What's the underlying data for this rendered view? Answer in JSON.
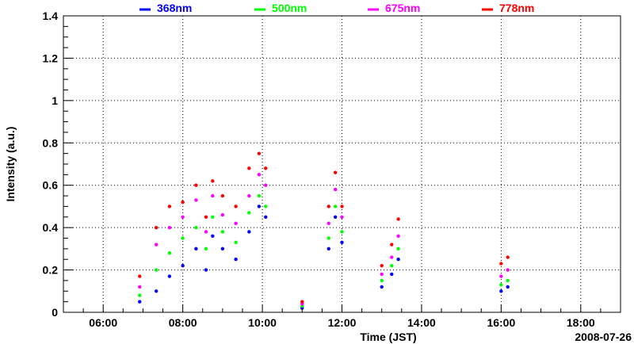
{
  "chart_data": {
    "type": "scatter",
    "title": "",
    "xlabel": "Time (JST)",
    "ylabel": "Intensity (a.u.)",
    "date_label": "2008-07-26",
    "xlim": [
      "05:00",
      "19:00"
    ],
    "ylim": [
      0,
      1.4
    ],
    "grid": true,
    "legend_position": "top",
    "x_ticks": [
      "06:00",
      "08:00",
      "10:00",
      "12:00",
      "14:00",
      "16:00",
      "18:00"
    ],
    "y_ticks": [
      "0",
      "0.2",
      "0.4",
      "0.6",
      "0.8",
      "1",
      "1.2",
      "1.4"
    ],
    "series": [
      {
        "name": "368nm",
        "color": "#0000ff",
        "points": [
          [
            "06:55",
            0.05
          ],
          [
            "07:20",
            0.1
          ],
          [
            "07:40",
            0.17
          ],
          [
            "08:00",
            0.22
          ],
          [
            "08:20",
            0.3
          ],
          [
            "08:35",
            0.2
          ],
          [
            "08:45",
            0.36
          ],
          [
            "09:00",
            0.3
          ],
          [
            "09:20",
            0.25
          ],
          [
            "09:40",
            0.38
          ],
          [
            "09:55",
            0.5
          ],
          [
            "10:05",
            0.45
          ],
          [
            "11:00",
            0.02
          ],
          [
            "11:40",
            0.3
          ],
          [
            "11:50",
            0.45
          ],
          [
            "12:00",
            0.33
          ],
          [
            "13:00",
            0.12
          ],
          [
            "13:15",
            0.18
          ],
          [
            "13:25",
            0.25
          ],
          [
            "16:00",
            0.1
          ],
          [
            "16:10",
            0.12
          ]
        ]
      },
      {
        "name": "500nm",
        "color": "#00ff00",
        "points": [
          [
            "06:55",
            0.08
          ],
          [
            "07:20",
            0.2
          ],
          [
            "07:40",
            0.28
          ],
          [
            "08:00",
            0.35
          ],
          [
            "08:20",
            0.4
          ],
          [
            "08:35",
            0.3
          ],
          [
            "08:45",
            0.45
          ],
          [
            "09:00",
            0.38
          ],
          [
            "09:20",
            0.33
          ],
          [
            "09:40",
            0.47
          ],
          [
            "09:55",
            0.55
          ],
          [
            "10:05",
            0.5
          ],
          [
            "11:00",
            0.03
          ],
          [
            "11:40",
            0.35
          ],
          [
            "11:50",
            0.5
          ],
          [
            "12:00",
            0.38
          ],
          [
            "13:00",
            0.15
          ],
          [
            "13:15",
            0.22
          ],
          [
            "13:25",
            0.3
          ],
          [
            "16:00",
            0.13
          ],
          [
            "16:10",
            0.15
          ]
        ]
      },
      {
        "name": "675nm",
        "color": "#ff00ff",
        "points": [
          [
            "06:55",
            0.12
          ],
          [
            "07:20",
            0.32
          ],
          [
            "07:40",
            0.4
          ],
          [
            "08:00",
            0.45
          ],
          [
            "08:20",
            0.53
          ],
          [
            "08:35",
            0.38
          ],
          [
            "08:45",
            0.55
          ],
          [
            "09:00",
            0.46
          ],
          [
            "09:20",
            0.42
          ],
          [
            "09:40",
            0.55
          ],
          [
            "09:55",
            0.65
          ],
          [
            "10:05",
            0.6
          ],
          [
            "11:00",
            0.04
          ],
          [
            "11:40",
            0.42
          ],
          [
            "11:50",
            0.58
          ],
          [
            "12:00",
            0.45
          ],
          [
            "13:00",
            0.18
          ],
          [
            "13:15",
            0.26
          ],
          [
            "13:25",
            0.36
          ],
          [
            "16:00",
            0.17
          ],
          [
            "16:10",
            0.2
          ]
        ]
      },
      {
        "name": "778nm",
        "color": "#ff0000",
        "points": [
          [
            "06:55",
            0.17
          ],
          [
            "07:20",
            0.4
          ],
          [
            "07:40",
            0.5
          ],
          [
            "08:00",
            0.52
          ],
          [
            "08:20",
            0.6
          ],
          [
            "08:35",
            0.45
          ],
          [
            "08:45",
            0.62
          ],
          [
            "09:00",
            0.55
          ],
          [
            "09:20",
            0.5
          ],
          [
            "09:40",
            0.68
          ],
          [
            "09:55",
            0.75
          ],
          [
            "10:05",
            0.68
          ],
          [
            "11:00",
            0.05
          ],
          [
            "11:40",
            0.5
          ],
          [
            "11:50",
            0.66
          ],
          [
            "12:00",
            0.5
          ],
          [
            "13:00",
            0.22
          ],
          [
            "13:15",
            0.32
          ],
          [
            "13:25",
            0.44
          ],
          [
            "16:00",
            0.23
          ],
          [
            "16:10",
            0.26
          ]
        ]
      }
    ]
  }
}
